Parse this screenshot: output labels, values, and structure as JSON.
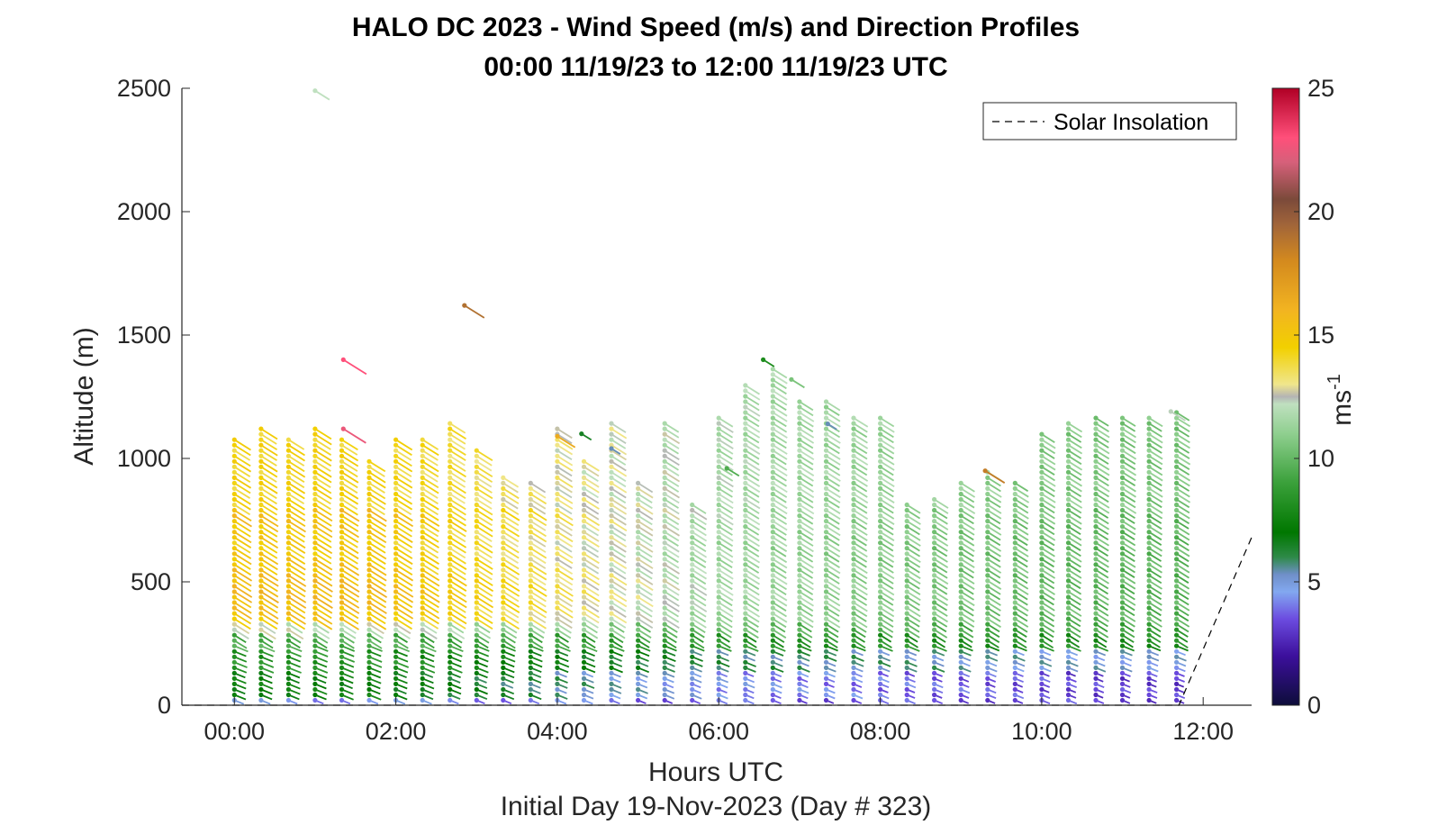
{
  "chart_data": {
    "type": "scatter",
    "title": "HALO DC 2023 - Wind Speed (m/s) and Direction Profiles",
    "subtitle": "00:00 11/19/23 to 12:00 11/19/23  UTC",
    "xlabel": "Hours UTC",
    "xlabel2": "Initial Day 19-Nov-2023 (Day # 323)",
    "ylabel": "Altitude (m)",
    "colorbar_label": "ms",
    "colorbar_label_exp": "-1",
    "xlim": [
      -0.65,
      12.6
    ],
    "ylim": [
      0,
      2500
    ],
    "xtick_values": [
      0,
      2,
      4,
      6,
      8,
      10,
      12
    ],
    "xtick_labels": [
      "00:00",
      "02:00",
      "04:00",
      "06:00",
      "08:00",
      "10:00",
      "12:00"
    ],
    "ytick_values": [
      0,
      500,
      1000,
      1500,
      2000,
      2500
    ],
    "ytick_labels": [
      "0",
      "500",
      "1000",
      "1500",
      "2000",
      "2500"
    ],
    "colorbar_range": [
      0,
      25
    ],
    "colorbar_ticks": [
      0,
      5,
      10,
      15,
      20,
      25
    ],
    "colorbar_tick_labels": [
      "0",
      "5",
      "10",
      "15",
      "20",
      "25"
    ],
    "colormap_stops": [
      {
        "v": 0,
        "color": "#0d0d3a"
      },
      {
        "v": 2,
        "color": "#3c0f9c"
      },
      {
        "v": 3.5,
        "color": "#6c4ce0"
      },
      {
        "v": 4.6,
        "color": "#82a8f0"
      },
      {
        "v": 5.3,
        "color": "#6f8fc8"
      },
      {
        "v": 6,
        "color": "#2e8a48"
      },
      {
        "v": 7,
        "color": "#007700"
      },
      {
        "v": 9,
        "color": "#3aa03a"
      },
      {
        "v": 11,
        "color": "#8fcf8f"
      },
      {
        "v": 12.2,
        "color": "#bfe0bf"
      },
      {
        "v": 12.5,
        "color": "#b4b4b4"
      },
      {
        "v": 13,
        "color": "#f0e68c"
      },
      {
        "v": 14.5,
        "color": "#f2d000"
      },
      {
        "v": 16,
        "color": "#f2b421"
      },
      {
        "v": 18,
        "color": "#d48a1e"
      },
      {
        "v": 19.5,
        "color": "#a0643a"
      },
      {
        "v": 20.5,
        "color": "#7b4a3a"
      },
      {
        "v": 22,
        "color": "#d6607a"
      },
      {
        "v": 23,
        "color": "#ff4f7a"
      },
      {
        "v": 25,
        "color": "#b00025"
      }
    ],
    "legend": {
      "label": "Solar Insolation",
      "position": "top-right",
      "line_style": "dashed"
    },
    "solar_insolation": {
      "x": [
        -0.65,
        11.7,
        12.6
      ],
      "y": [
        0,
        0,
        680
      ]
    },
    "profiles_note": "Vectors are plotted at altitude bins of each ~20-minute profile; colour encodes wind speed.",
    "profiles": [
      {
        "t": 0.0,
        "top": 1090,
        "d": 0.95
      },
      {
        "t": 0.33,
        "top": 1120,
        "d": 0.95
      },
      {
        "t": 0.67,
        "top": 1090,
        "d": 0.95
      },
      {
        "t": 1.0,
        "top": 1130,
        "d": 0.95
      },
      {
        "t": 1.33,
        "top": 1080,
        "d": 0.95
      },
      {
        "t": 1.67,
        "top": 1000,
        "d": 0.95
      },
      {
        "t": 2.0,
        "top": 1090,
        "d": 0.9
      },
      {
        "t": 2.33,
        "top": 1090,
        "d": 0.85
      },
      {
        "t": 2.67,
        "top": 1160,
        "d": 0.8
      },
      {
        "t": 3.0,
        "top": 1050,
        "d": 0.75
      },
      {
        "t": 3.33,
        "top": 940,
        "d": 0.7
      },
      {
        "t": 3.67,
        "top": 900,
        "d": 0.65
      },
      {
        "t": 4.0,
        "top": 1120,
        "d": 0.6
      },
      {
        "t": 4.33,
        "top": 1000,
        "d": 0.55
      },
      {
        "t": 4.67,
        "top": 1150,
        "d": 0.5
      },
      {
        "t": 5.0,
        "top": 910,
        "d": 0.45
      },
      {
        "t": 5.33,
        "top": 1150,
        "d": 0.4
      },
      {
        "t": 5.67,
        "top": 830,
        "d": 0.35
      },
      {
        "t": 6.0,
        "top": 1180,
        "d": 0.32
      },
      {
        "t": 6.33,
        "top": 1300,
        "d": 0.3
      },
      {
        "t": 6.67,
        "top": 1380,
        "d": 0.28
      },
      {
        "t": 7.0,
        "top": 1250,
        "d": 0.26
      },
      {
        "t": 7.33,
        "top": 1230,
        "d": 0.24
      },
      {
        "t": 7.67,
        "top": 1180,
        "d": 0.22
      },
      {
        "t": 8.0,
        "top": 1180,
        "d": 0.2
      },
      {
        "t": 8.33,
        "top": 820,
        "d": 0.18
      },
      {
        "t": 8.67,
        "top": 850,
        "d": 0.16
      },
      {
        "t": 9.0,
        "top": 900,
        "d": 0.14
      },
      {
        "t": 9.33,
        "top": 950,
        "d": 0.12
      },
      {
        "t": 9.67,
        "top": 900,
        "d": 0.1
      },
      {
        "t": 10.0,
        "top": 1100,
        "d": 0.08
      },
      {
        "t": 10.33,
        "top": 1150,
        "d": 0.06
      },
      {
        "t": 10.67,
        "top": 1180,
        "d": 0.05
      },
      {
        "t": 11.0,
        "top": 1180,
        "d": 0.04
      },
      {
        "t": 11.33,
        "top": 1180,
        "d": 0.03
      },
      {
        "t": 11.67,
        "top": 1190,
        "d": 0.02
      }
    ],
    "outliers": [
      {
        "t": 1.0,
        "alt": 2490,
        "speed": 12.2
      },
      {
        "t": 2.85,
        "alt": 1620,
        "speed": 19
      },
      {
        "t": 1.35,
        "alt": 1400,
        "speed": 23
      },
      {
        "t": 1.35,
        "alt": 1120,
        "speed": 22.5
      },
      {
        "t": 6.55,
        "alt": 1400,
        "speed": 8
      },
      {
        "t": 6.9,
        "alt": 1320,
        "speed": 10.5
      },
      {
        "t": 6.1,
        "alt": 960,
        "speed": 9.5
      },
      {
        "t": 4.3,
        "alt": 1100,
        "speed": 6.5
      },
      {
        "t": 4.0,
        "alt": 1090,
        "speed": 16.5
      },
      {
        "t": 4.67,
        "alt": 1040,
        "speed": 5.4
      },
      {
        "t": 7.35,
        "alt": 1140,
        "speed": 5.4
      },
      {
        "t": 9.3,
        "alt": 950,
        "speed": 18.5
      },
      {
        "t": 11.6,
        "alt": 1190,
        "speed": 12.3
      }
    ]
  }
}
